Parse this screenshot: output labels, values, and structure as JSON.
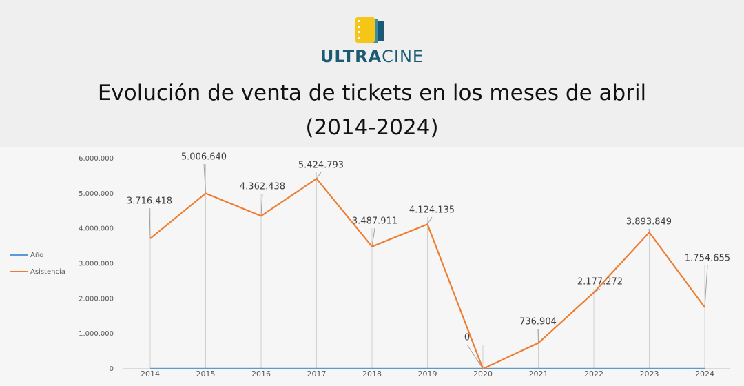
{
  "brand": {
    "strong": "ULTRA",
    "light": "CINE"
  },
  "chart_data": {
    "type": "line",
    "title": "Evolución de venta de tickets en los meses de abril (2014-2024)",
    "categories": [
      "2014",
      "2015",
      "2016",
      "2017",
      "2018",
      "2019",
      "2020",
      "2021",
      "2022",
      "2023",
      "2024"
    ],
    "series": [
      {
        "name": "Año",
        "color": "#5b9bd5",
        "values": [
          2014,
          2015,
          2016,
          2017,
          2018,
          2019,
          2020,
          2021,
          2022,
          2023,
          2024
        ]
      },
      {
        "name": "Asistencia",
        "color": "#ed7d31",
        "values": [
          3716418,
          5006640,
          4362438,
          5424793,
          3487911,
          4124135,
          0,
          736904,
          2177272,
          3893849,
          1754655
        ],
        "value_labels": [
          "3.716.418",
          "5.006.640",
          "4.362.438",
          "5.424.793",
          "3.487.911",
          "4.124.135",
          "0",
          "736.904",
          "2.177.272",
          "3.893.849",
          "1.754.655"
        ]
      }
    ],
    "ylim": [
      0,
      6000000
    ],
    "yticks": [
      0,
      {
        "value": 1000000,
        "label": "1.000.000"
      },
      {
        "value": 2000000,
        "label": "2.000.000"
      },
      {
        "value": 3000000,
        "label": "3.000.000"
      },
      {
        "value": 4000000,
        "label": "4.000.000"
      },
      {
        "value": 5000000,
        "label": "5.000.000"
      },
      {
        "value": 6000000,
        "label": "6.000.000"
      }
    ],
    "legend": "left"
  }
}
